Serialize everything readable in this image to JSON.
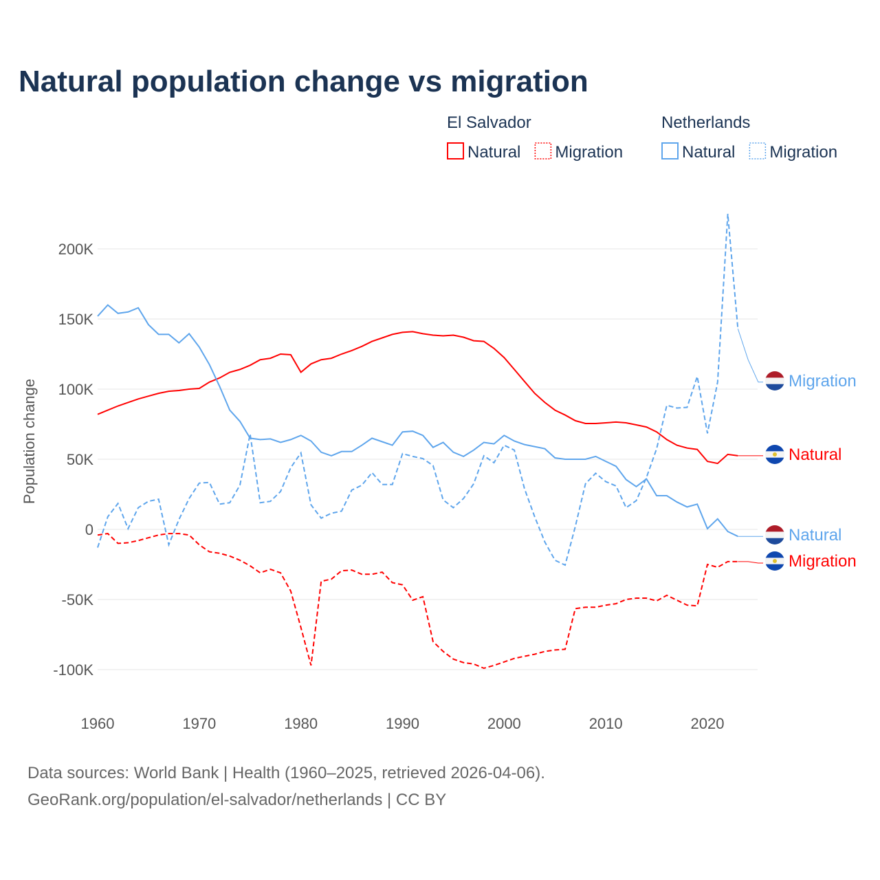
{
  "chart_data": {
    "type": "line",
    "title": "Natural population change vs migration",
    "ylabel": "Population change",
    "xlabel": "",
    "xlim": [
      1960,
      2025
    ],
    "ylim": [
      -120000,
      230000
    ],
    "x_ticks": [
      "1960",
      "1970",
      "1980",
      "1990",
      "2000",
      "2010",
      "2020"
    ],
    "x_tick_values": [
      1960,
      1970,
      1980,
      1990,
      2000,
      2010,
      2020
    ],
    "y_ticks": [
      "-100K",
      "-50K",
      "0",
      "50K",
      "100K",
      "150K",
      "200K"
    ],
    "y_tick_values": [
      -100000,
      -50000,
      0,
      50000,
      100000,
      150000,
      200000
    ],
    "grid": true,
    "legend": {
      "placement": "top-right",
      "groups": [
        {
          "country": "El Salvador",
          "items": [
            "Natural",
            "Migration"
          ],
          "color": "#ff0000"
        },
        {
          "country": "Netherlands",
          "items": [
            "Natural",
            "Migration"
          ],
          "color": "#5ea5ec"
        }
      ]
    },
    "x": [
      1960,
      1961,
      1962,
      1963,
      1964,
      1965,
      1966,
      1967,
      1968,
      1969,
      1970,
      1971,
      1972,
      1973,
      1974,
      1975,
      1976,
      1977,
      1978,
      1979,
      1980,
      1981,
      1982,
      1983,
      1984,
      1985,
      1986,
      1987,
      1988,
      1989,
      1990,
      1991,
      1992,
      1993,
      1994,
      1995,
      1996,
      1997,
      1998,
      1999,
      2000,
      2001,
      2002,
      2003,
      2004,
      2005,
      2006,
      2007,
      2008,
      2009,
      2010,
      2011,
      2012,
      2013,
      2014,
      2015,
      2016,
      2017,
      2018,
      2019,
      2020,
      2021,
      2022,
      2023,
      2024,
      2025
    ],
    "series": [
      {
        "name": "El Salvador Natural",
        "country": "El Salvador",
        "kind": "Natural",
        "color": "#ff0000",
        "dash": false,
        "end_label": "Natural",
        "flag": "sv",
        "values_k": [
          82,
          85,
          88,
          90.5,
          93,
          95,
          97,
          98.5,
          99,
          100,
          100.5,
          105,
          108,
          112,
          114,
          117,
          121,
          122,
          125,
          124.5,
          112,
          118,
          121,
          122,
          125,
          127.5,
          130.5,
          134,
          136.5,
          139,
          140.5,
          141,
          139.5,
          138.5,
          138,
          138.5,
          137,
          134.5,
          134,
          129,
          122.5,
          114,
          105.5,
          97,
          90.5,
          85,
          81.5,
          77.5,
          75.5,
          75.5,
          76,
          76.5,
          76,
          74.5,
          73,
          69.5,
          64,
          60,
          58,
          57,
          48.5,
          47,
          53.5,
          52.5,
          52.5,
          52.5
        ]
      },
      {
        "name": "El Salvador Migration",
        "country": "El Salvador",
        "kind": "Migration",
        "color": "#ff0000",
        "dash": true,
        "end_label": "Migration",
        "flag": "sv",
        "values_k": [
          -4,
          -3,
          -10,
          -9.5,
          -8,
          -6,
          -4,
          -3,
          -3,
          -4,
          -11,
          -16,
          -17,
          -19,
          -22,
          -26,
          -31,
          -28.5,
          -31,
          -44,
          -70,
          -97,
          -37,
          -35.5,
          -29.5,
          -29,
          -32,
          -32,
          -30.5,
          -38,
          -39.5,
          -50.5,
          -48,
          -80,
          -87,
          -92.5,
          -95,
          -96,
          -99,
          -97,
          -94.5,
          -92,
          -90.5,
          -89,
          -87,
          -86,
          -85.5,
          -56.5,
          -55.5,
          -55.5,
          -54,
          -53,
          -50,
          -49,
          -49,
          -51,
          -47,
          -50.5,
          -54,
          -54.5,
          -25,
          -27,
          -23,
          -23,
          -23,
          -24
        ]
      },
      {
        "name": "Netherlands Natural",
        "country": "Netherlands",
        "kind": "Natural",
        "color": "#5ea5ec",
        "dash": false,
        "end_label": "Natural",
        "flag": "nl",
        "values_k": [
          152,
          160,
          154,
          155,
          158,
          146,
          139,
          139,
          133,
          139.5,
          130,
          117.5,
          102,
          85,
          77,
          65,
          64,
          64.5,
          62,
          64,
          67,
          63,
          55,
          52.5,
          55.5,
          55.5,
          60,
          65,
          62.5,
          60,
          69.5,
          70,
          67,
          58.5,
          62,
          55,
          52,
          56.5,
          62,
          61,
          67,
          63,
          60.5,
          59,
          57.5,
          51,
          50,
          50,
          50,
          52,
          48.5,
          45,
          35.5,
          30.5,
          36,
          24,
          24,
          19.5,
          16,
          18,
          0.5,
          7.5,
          -1.5,
          -5,
          -5,
          -5
        ]
      },
      {
        "name": "Netherlands Migration",
        "country": "Netherlands",
        "kind": "Migration",
        "color": "#5ea5ec",
        "dash": true,
        "end_label": "Migration",
        "flag": "nl",
        "values_k": [
          -13,
          9,
          18.5,
          0.5,
          15.5,
          20,
          21.5,
          -11,
          7,
          22,
          33,
          33.5,
          18,
          19,
          31.5,
          68,
          19,
          20,
          27,
          44,
          54.5,
          17.5,
          8,
          11.5,
          13,
          28,
          31.5,
          40.5,
          32,
          32,
          54,
          52,
          50.5,
          45.5,
          21,
          15.5,
          22,
          32.5,
          52.5,
          47.5,
          60,
          56.5,
          29,
          9,
          -9,
          -22,
          -25.5,
          2,
          32.5,
          40,
          34,
          31,
          15.5,
          20.5,
          37,
          57.5,
          88.5,
          86.5,
          87,
          109,
          68.5,
          105,
          225,
          143,
          121,
          105
        ]
      }
    ]
  },
  "footer": {
    "line1": "Data sources: World Bank | Health (1960–2025, retrieved 2026-04-06).",
    "line2": "GeoRank.org/population/el-salvador/netherlands | CC BY"
  },
  "colors": {
    "title": "#1b3353",
    "axis_text": "#555555",
    "grid": "#e6e6e6"
  }
}
